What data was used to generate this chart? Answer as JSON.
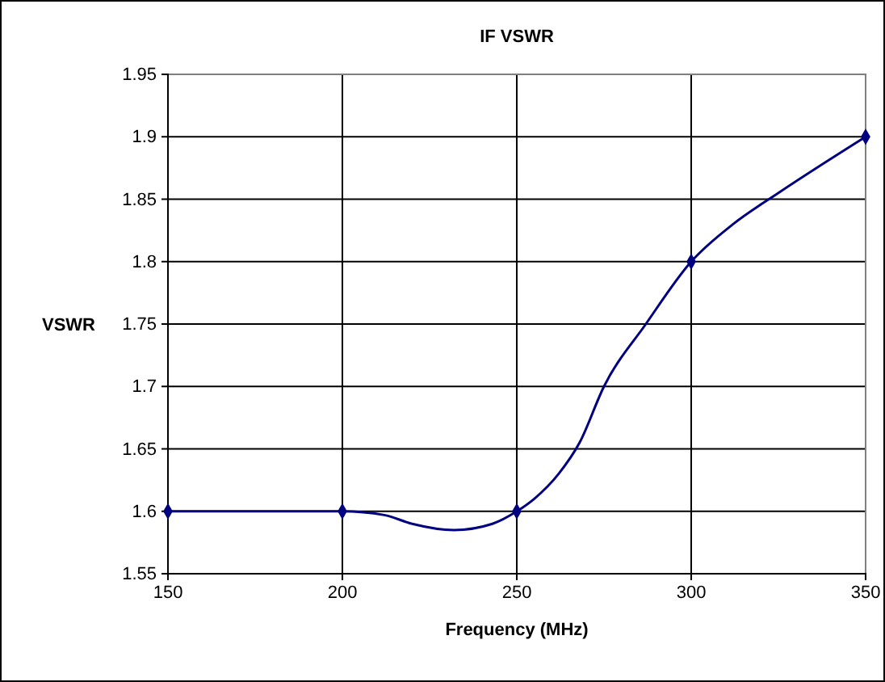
{
  "chart_data": {
    "type": "line",
    "title": "IF VSWR",
    "xlabel": "Frequency (MHz)",
    "ylabel": "VSWR",
    "xlim": [
      150,
      350
    ],
    "xticks": [
      150,
      200,
      250,
      300,
      350
    ],
    "ylim": [
      1.55,
      1.95
    ],
    "yticks": [
      1.55,
      1.6,
      1.65,
      1.7,
      1.75,
      1.8,
      1.85,
      1.9,
      1.95
    ],
    "grid": true,
    "series": [
      {
        "type": "line",
        "color": "#000080",
        "marker": "none",
        "x": [
          150,
          200,
          212,
          220,
          232,
          243,
          250,
          255,
          262,
          268,
          275,
          287,
          300,
          312,
          325,
          350
        ],
        "values": [
          1.6,
          1.6,
          1.597,
          1.59,
          1.585,
          1.59,
          1.6,
          1.61,
          1.63,
          1.655,
          1.7,
          1.75,
          1.8,
          1.83,
          1.855,
          1.9
        ]
      },
      {
        "type": "scatter",
        "color": "#000080",
        "marker": "diamond",
        "x": [
          150,
          200,
          250,
          300,
          350
        ],
        "values": [
          1.6,
          1.6,
          1.6,
          1.8,
          1.9
        ]
      }
    ]
  }
}
